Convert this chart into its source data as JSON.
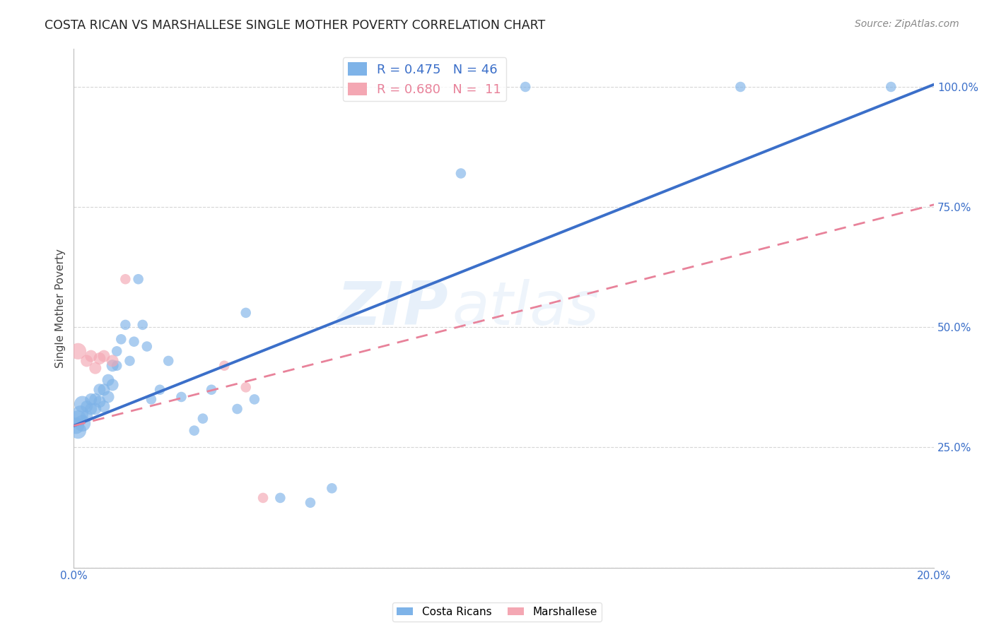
{
  "title": "COSTA RICAN VS MARSHALLESE SINGLE MOTHER POVERTY CORRELATION CHART",
  "source": "Source: ZipAtlas.com",
  "ylabel": "Single Mother Poverty",
  "x_min": 0.0,
  "x_max": 0.2,
  "y_min": 0.0,
  "y_max": 1.08,
  "x_ticks": [
    0.0,
    0.04,
    0.08,
    0.12,
    0.16,
    0.2
  ],
  "y_ticks": [
    0.0,
    0.25,
    0.5,
    0.75,
    1.0
  ],
  "cr_R": 0.475,
  "cr_N": 46,
  "ma_R": 0.68,
  "ma_N": 11,
  "blue_color": "#7EB3E8",
  "pink_color": "#F4A7B3",
  "blue_line_color": "#3B6FC9",
  "pink_line_color": "#E8829A",
  "cr_scatter_x": [
    0.0005,
    0.001,
    0.001,
    0.0015,
    0.002,
    0.002,
    0.003,
    0.003,
    0.004,
    0.004,
    0.005,
    0.005,
    0.006,
    0.006,
    0.007,
    0.007,
    0.008,
    0.008,
    0.009,
    0.009,
    0.01,
    0.01,
    0.011,
    0.012,
    0.013,
    0.014,
    0.015,
    0.016,
    0.017,
    0.018,
    0.02,
    0.022,
    0.025,
    0.028,
    0.03,
    0.032,
    0.038,
    0.04,
    0.042,
    0.048,
    0.055,
    0.06,
    0.09,
    0.105,
    0.155,
    0.19
  ],
  "cr_scatter_y": [
    0.295,
    0.31,
    0.285,
    0.32,
    0.34,
    0.3,
    0.335,
    0.315,
    0.33,
    0.35,
    0.33,
    0.35,
    0.345,
    0.37,
    0.37,
    0.335,
    0.39,
    0.355,
    0.42,
    0.38,
    0.45,
    0.42,
    0.475,
    0.505,
    0.43,
    0.47,
    0.6,
    0.505,
    0.46,
    0.35,
    0.37,
    0.43,
    0.355,
    0.285,
    0.31,
    0.37,
    0.33,
    0.53,
    0.35,
    0.145,
    0.135,
    0.165,
    0.82,
    1.0,
    1.0,
    1.0
  ],
  "ma_scatter_x": [
    0.001,
    0.003,
    0.004,
    0.005,
    0.006,
    0.007,
    0.009,
    0.012,
    0.035,
    0.04,
    0.044
  ],
  "ma_scatter_y": [
    0.45,
    0.43,
    0.44,
    0.415,
    0.435,
    0.44,
    0.43,
    0.6,
    0.42,
    0.375,
    0.145
  ],
  "watermark_zip": "ZIP",
  "watermark_atlas": "atlas",
  "cr_line_intercept": 0.295,
  "cr_line_slope": 3.55,
  "ma_line_intercept": 0.295,
  "ma_line_slope": 2.3,
  "dot_size_small": 110,
  "dot_size_large": 280
}
